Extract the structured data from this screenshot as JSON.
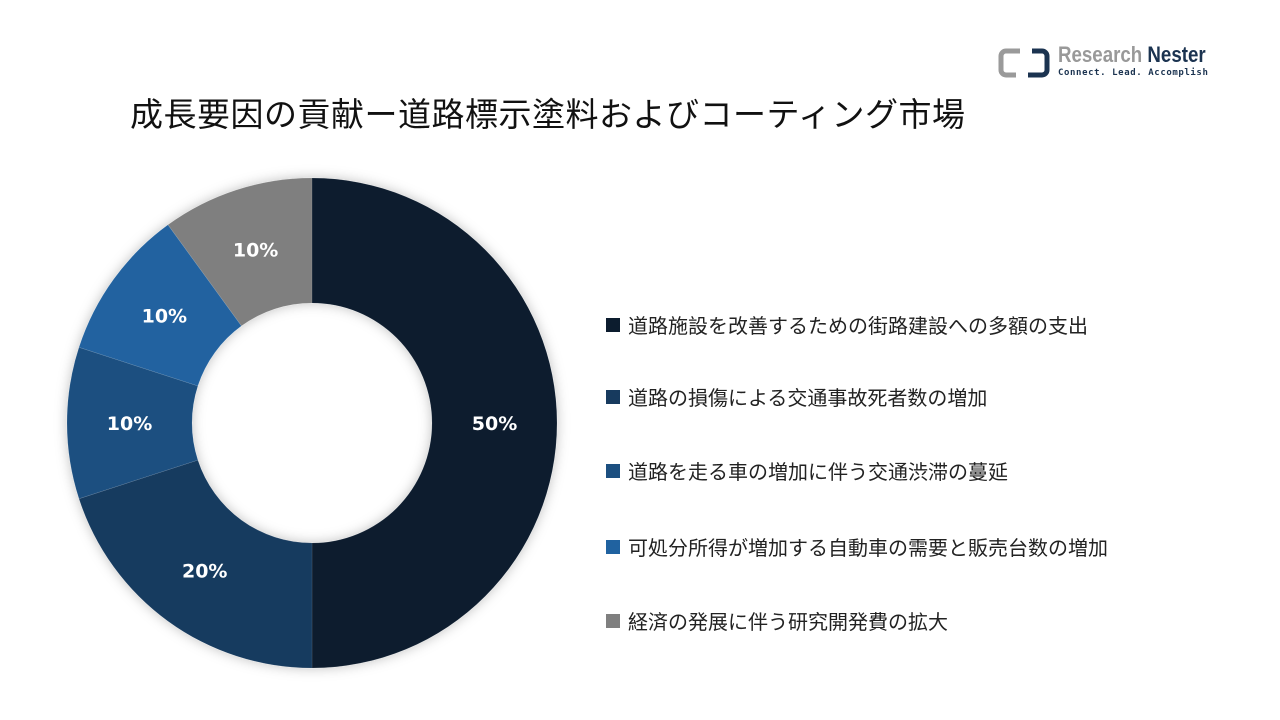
{
  "logo": {
    "name_part1": "Research",
    "name_part2": "Nester",
    "tagline": "Connect. Lead. Accomplish"
  },
  "chart_data": {
    "type": "pie",
    "donut": true,
    "title": "成長要因の貢献ー道路標示塗料およびコーティング市場",
    "legend_position": "right",
    "categories": [
      "道路施設を改善するための街路建設への多額の支出",
      "道路の損傷による交通事故死者数の増加",
      "道路を走る車の増加に伴う交通渋滞の蔓延",
      "可処分所得が増加する自動車の需要と販売台数の増加",
      "経済の発展に伴う研究開発費の拡大"
    ],
    "values": [
      50,
      20,
      10,
      10,
      10
    ],
    "labels": [
      "50%",
      "20%",
      "10%",
      "10%",
      "10%"
    ],
    "colors": [
      "#0c1c2e",
      "#173a5e",
      "#1c4f80",
      "#2062a0",
      "#7f7f7f"
    ]
  }
}
